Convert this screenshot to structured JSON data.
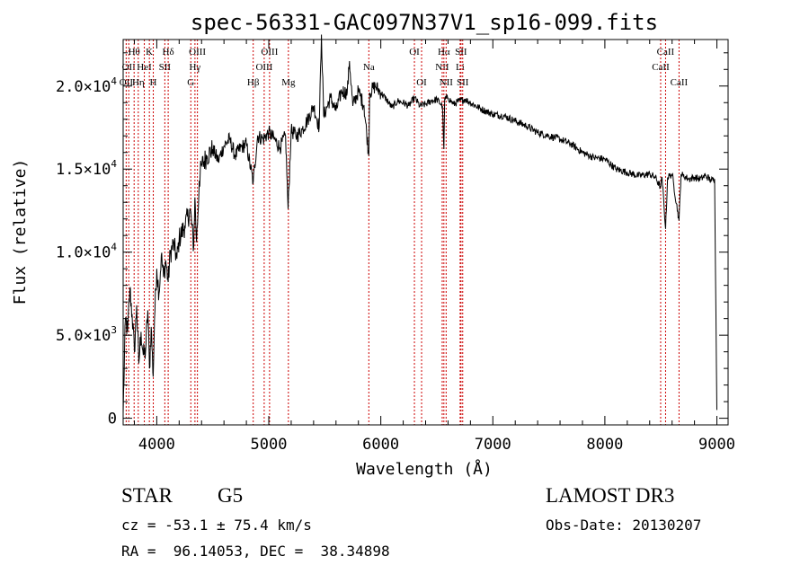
{
  "chart_data": {
    "type": "line",
    "title": "spec-56331-GAC097N37V1_sp16-099.fits",
    "xlabel": "Wavelength (Å)",
    "ylabel": "Flux (relative)",
    "xlim": [
      3700,
      9100
    ],
    "ylim": [
      -400,
      22800
    ],
    "x_ticks": [
      {
        "v": 4000,
        "label": "4000"
      },
      {
        "v": 5000,
        "label": "5000"
      },
      {
        "v": 6000,
        "label": "6000"
      },
      {
        "v": 7000,
        "label": "7000"
      },
      {
        "v": 8000,
        "label": "8000"
      },
      {
        "v": 9000,
        "label": "9000"
      }
    ],
    "y_ticks": [
      {
        "v": 0,
        "mant": "0",
        "exp": ""
      },
      {
        "v": 5000,
        "mant": "5.0×10",
        "exp": "3"
      },
      {
        "v": 10000,
        "mant": "1.0×10",
        "exp": "4"
      },
      {
        "v": 15000,
        "mant": "1.5×10",
        "exp": "4"
      },
      {
        "v": 20000,
        "mant": "2.0×10",
        "exp": "4"
      }
    ],
    "series": [
      {
        "name": "spectrum",
        "x": [
          3700,
          3720,
          3740,
          3760,
          3780,
          3800,
          3820,
          3840,
          3860,
          3880,
          3900,
          3920,
          3935,
          3950,
          3968,
          3980,
          4000,
          4020,
          4040,
          4060,
          4080,
          4102,
          4120,
          4150,
          4180,
          4200,
          4250,
          4300,
          4330,
          4340,
          4355,
          4380,
          4400,
          4450,
          4500,
          4550,
          4600,
          4650,
          4700,
          4750,
          4800,
          4861,
          4900,
          4950,
          5000,
          5050,
          5100,
          5150,
          5172,
          5200,
          5250,
          5300,
          5350,
          5400,
          5450,
          5470,
          5490,
          5550,
          5600,
          5650,
          5700,
          5720,
          5750,
          5800,
          5850,
          5893,
          5900,
          5950,
          6000,
          6050,
          6100,
          6150,
          6200,
          6250,
          6300,
          6350,
          6400,
          6450,
          6500,
          6550,
          6563,
          6570,
          6600,
          6650,
          6700,
          6750,
          6800,
          6900,
          7000,
          7100,
          7200,
          7300,
          7400,
          7500,
          7600,
          7700,
          7800,
          7900,
          8000,
          8100,
          8200,
          8300,
          8400,
          8450,
          8498,
          8510,
          8542,
          8560,
          8600,
          8662,
          8680,
          8700,
          8750,
          8800,
          8850,
          8900,
          8950,
          8980,
          9000
        ],
        "values": [
          300,
          6000,
          5200,
          7800,
          6200,
          4000,
          6800,
          3300,
          5200,
          3800,
          4000,
          6500,
          3000,
          5500,
          2500,
          6000,
          9000,
          7500,
          9800,
          8500,
          9500,
          8200,
          9900,
          10500,
          9600,
          10800,
          11600,
          12500,
          10300,
          13300,
          10600,
          14300,
          15200,
          15800,
          16200,
          15500,
          16400,
          16800,
          15800,
          16300,
          16500,
          14200,
          17000,
          16800,
          17200,
          16800,
          16300,
          17000,
          12600,
          17300,
          17000,
          17400,
          18000,
          18800,
          17500,
          23100,
          18200,
          19300,
          18500,
          19700,
          19600,
          21500,
          18800,
          19700,
          18800,
          15800,
          19600,
          20000,
          19600,
          19200,
          18700,
          19100,
          19000,
          18800,
          19300,
          18800,
          18900,
          19100,
          19200,
          18800,
          16200,
          19200,
          19300,
          18900,
          19100,
          19200,
          19000,
          18600,
          18300,
          18200,
          17900,
          17600,
          17200,
          17000,
          16800,
          16500,
          16000,
          15700,
          15600,
          15000,
          14800,
          14600,
          14700,
          14500,
          13900,
          14500,
          11400,
          14500,
          14700,
          11900,
          14700,
          14600,
          14400,
          14500,
          14400,
          14600,
          14300,
          14400,
          500
        ]
      }
    ],
    "lines": [
      {
        "w": 3727,
        "label": "OII",
        "row": 2
      },
      {
        "w": 3750,
        "label": "OII",
        "row": 1
      },
      {
        "w": 3798,
        "label": "Hθ",
        "row": 0
      },
      {
        "w": 3835,
        "label": "Hη",
        "row": 2
      },
      {
        "w": 3889,
        "label": "HeI",
        "row": 1
      },
      {
        "w": 3934,
        "label": "K",
        "row": 0
      },
      {
        "w": 3969,
        "label": "H",
        "row": 2
      },
      {
        "w": 4072,
        "label": "SII",
        "row": 1
      },
      {
        "w": 4102,
        "label": "Hδ",
        "row": 0
      },
      {
        "w": 4304,
        "label": "G",
        "row": 2
      },
      {
        "w": 4341,
        "label": "Hγ",
        "row": 1
      },
      {
        "w": 4363,
        "label": "OIII",
        "row": 0
      },
      {
        "w": 4861,
        "label": "Hβ",
        "row": 2
      },
      {
        "w": 4959,
        "label": "OIII",
        "row": 1
      },
      {
        "w": 5007,
        "label": "OIII",
        "row": 0
      },
      {
        "w": 5175,
        "label": "Mg",
        "row": 2
      },
      {
        "w": 5893,
        "label": "Na",
        "row": 1
      },
      {
        "w": 6300,
        "label": "OI",
        "row": 0
      },
      {
        "w": 6364,
        "label": "OI",
        "row": 2
      },
      {
        "w": 6548,
        "label": "NII",
        "row": 1
      },
      {
        "w": 6563,
        "label": "Hα",
        "row": 0
      },
      {
        "w": 6583,
        "label": "NII",
        "row": 2
      },
      {
        "w": 6708,
        "label": "Li",
        "row": 1
      },
      {
        "w": 6716,
        "label": "SII",
        "row": 0
      },
      {
        "w": 6731,
        "label": "SII",
        "row": 2
      },
      {
        "w": 8498,
        "label": "CaII",
        "row": 1
      },
      {
        "w": 8542,
        "label": "CaII",
        "row": 0
      },
      {
        "w": 8662,
        "label": "CaII",
        "row": 2
      }
    ]
  },
  "info": {
    "class_label": "STAR",
    "subclass": "G5",
    "survey": "LAMOST DR3",
    "redshift": "cz = -53.1 ± 75.4 km/s",
    "obs_date": "Obs-Date: 20130207",
    "coords": "RA =  96.14053, DEC =  38.34898"
  },
  "colors": {
    "spectrum": "#000000",
    "line_marker": "#cc0000",
    "axis": "#000000"
  }
}
